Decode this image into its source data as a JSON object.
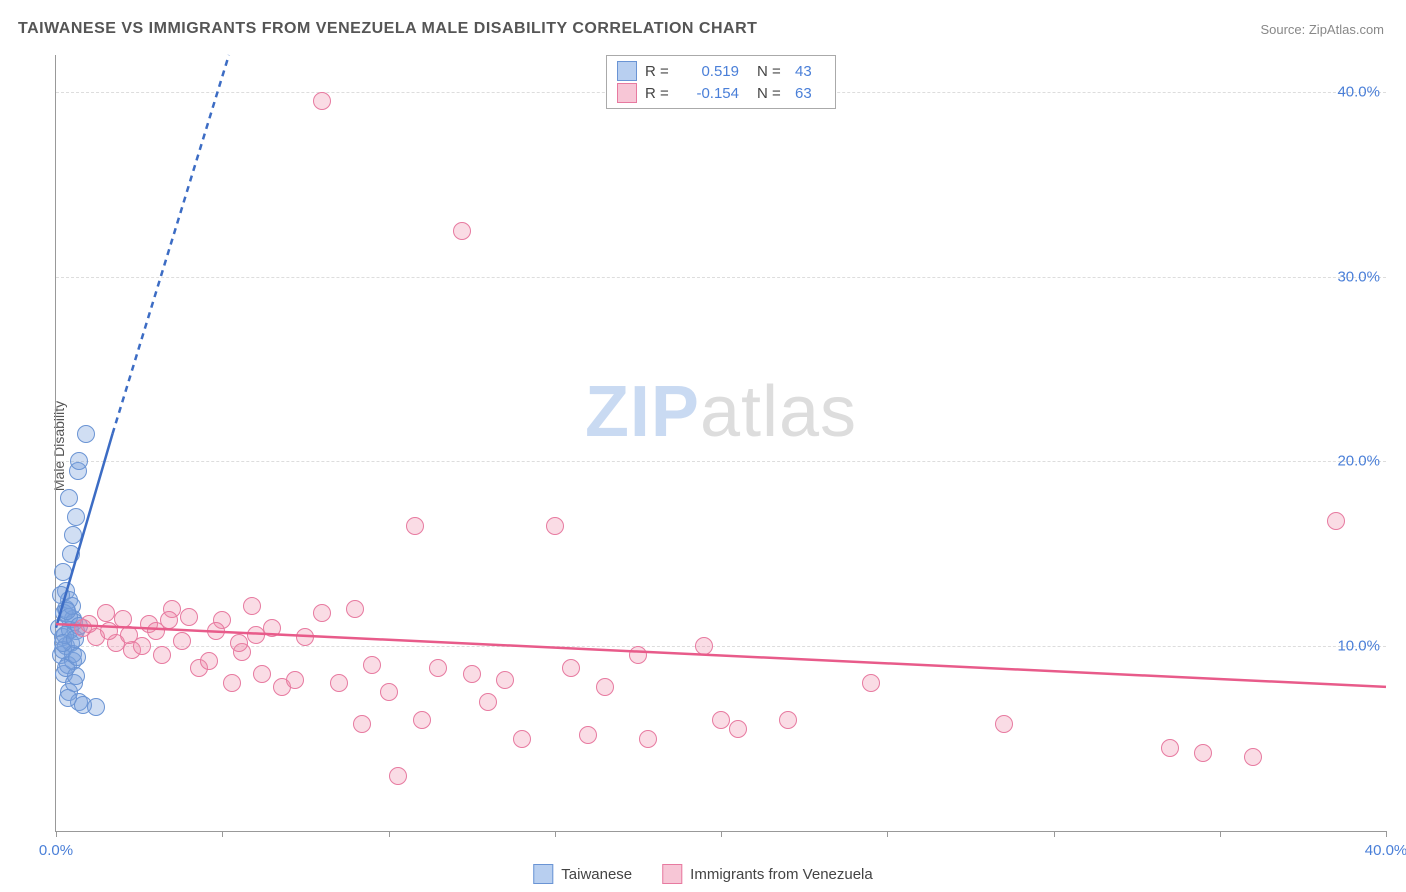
{
  "title": "TAIWANESE VS IMMIGRANTS FROM VENEZUELA MALE DISABILITY CORRELATION CHART",
  "source": "Source: ZipAtlas.com",
  "ylabel": "Male Disability",
  "watermark": {
    "part1": "ZIP",
    "part2": "atlas"
  },
  "chart": {
    "type": "scatter",
    "xlim": [
      0,
      40
    ],
    "ylim": [
      0,
      42
    ],
    "x_ticks": [
      0,
      5,
      10,
      15,
      20,
      25,
      30,
      35,
      40
    ],
    "x_tick_labels": {
      "0": "0.0%",
      "40": "40.0%"
    },
    "y_gridlines": [
      10,
      20,
      30,
      40
    ],
    "y_tick_labels": {
      "10": "10.0%",
      "20": "20.0%",
      "30": "30.0%",
      "40": "40.0%"
    },
    "background_color": "#ffffff",
    "grid_color": "#dddddd",
    "axis_color": "#999999",
    "tick_label_color": "#4a7fd8",
    "point_radius": 9
  },
  "series": [
    {
      "id": "taiwanese",
      "label": "Taiwanese",
      "color_fill": "rgba(120,160,220,0.35)",
      "color_stroke": "#6a94d4",
      "swatch_fill": "#b8cff0",
      "swatch_border": "#6a94d4",
      "R": "0.519",
      "N": "43",
      "trend": {
        "solid": {
          "x1": 0.0,
          "y1": 11.0,
          "x2": 1.7,
          "y2": 21.5
        },
        "dashed": {
          "x1": 1.7,
          "y1": 21.5,
          "x2": 5.2,
          "y2": 42.0
        },
        "stroke": "#3c6cc4",
        "width": 2.5
      },
      "points": [
        [
          0.1,
          11.0
        ],
        [
          0.2,
          10.5
        ],
        [
          0.3,
          12.0
        ],
        [
          0.15,
          9.5
        ],
        [
          0.25,
          8.5
        ],
        [
          0.4,
          7.5
        ],
        [
          0.3,
          13.0
        ],
        [
          0.5,
          11.5
        ],
        [
          0.6,
          10.8
        ],
        [
          0.2,
          14.0
        ],
        [
          0.4,
          12.5
        ],
        [
          0.35,
          9.0
        ],
        [
          0.55,
          8.0
        ],
        [
          0.7,
          7.0
        ],
        [
          0.8,
          6.8
        ],
        [
          1.2,
          6.7
        ],
        [
          0.45,
          15.0
        ],
        [
          0.5,
          16.0
        ],
        [
          0.6,
          17.0
        ],
        [
          0.4,
          18.0
        ],
        [
          0.65,
          19.5
        ],
        [
          0.7,
          20.0
        ],
        [
          0.9,
          21.5
        ],
        [
          0.3,
          10.0
        ],
        [
          0.25,
          11.8
        ],
        [
          0.15,
          12.8
        ],
        [
          0.5,
          9.2
        ],
        [
          0.6,
          8.4
        ],
        [
          0.35,
          7.2
        ],
        [
          0.45,
          10.2
        ],
        [
          0.55,
          11.3
        ],
        [
          0.2,
          9.8
        ],
        [
          0.38,
          11.6
        ],
        [
          0.42,
          10.9
        ],
        [
          0.3,
          8.8
        ],
        [
          0.48,
          12.2
        ],
        [
          0.52,
          9.6
        ],
        [
          0.28,
          10.6
        ],
        [
          0.33,
          11.9
        ],
        [
          0.22,
          10.2
        ],
        [
          0.58,
          10.4
        ],
        [
          0.62,
          9.4
        ],
        [
          0.68,
          11.1
        ]
      ]
    },
    {
      "id": "venezuela",
      "label": "Immigrants from Venezuela",
      "color_fill": "rgba(240,140,170,0.3)",
      "color_stroke": "#e77aa0",
      "swatch_fill": "#f7c6d6",
      "swatch_border": "#e77aa0",
      "R": "-0.154",
      "N": "63",
      "trend": {
        "solid": {
          "x1": 0.0,
          "y1": 11.2,
          "x2": 40.0,
          "y2": 7.8
        },
        "stroke": "#e85b8a",
        "width": 2.5
      },
      "points": [
        [
          0.8,
          11.0
        ],
        [
          1.2,
          10.5
        ],
        [
          1.5,
          11.8
        ],
        [
          1.8,
          10.2
        ],
        [
          2.0,
          11.5
        ],
        [
          2.3,
          9.8
        ],
        [
          2.6,
          10.0
        ],
        [
          2.8,
          11.2
        ],
        [
          3.0,
          10.8
        ],
        [
          3.2,
          9.5
        ],
        [
          3.5,
          12.0
        ],
        [
          3.8,
          10.3
        ],
        [
          4.0,
          11.6
        ],
        [
          4.3,
          8.8
        ],
        [
          4.6,
          9.2
        ],
        [
          5.0,
          11.4
        ],
        [
          5.3,
          8.0
        ],
        [
          5.6,
          9.7
        ],
        [
          5.9,
          12.2
        ],
        [
          6.2,
          8.5
        ],
        [
          6.5,
          11.0
        ],
        [
          6.8,
          7.8
        ],
        [
          7.2,
          8.2
        ],
        [
          7.5,
          10.5
        ],
        [
          8.0,
          11.8
        ],
        [
          8.0,
          39.5
        ],
        [
          8.5,
          8.0
        ],
        [
          9.0,
          12.0
        ],
        [
          9.2,
          5.8
        ],
        [
          9.5,
          9.0
        ],
        [
          10.0,
          7.5
        ],
        [
          10.3,
          3.0
        ],
        [
          10.8,
          16.5
        ],
        [
          11.0,
          6.0
        ],
        [
          11.5,
          8.8
        ],
        [
          12.2,
          32.5
        ],
        [
          12.5,
          8.5
        ],
        [
          13.0,
          7.0
        ],
        [
          13.5,
          8.2
        ],
        [
          14.0,
          5.0
        ],
        [
          15.0,
          16.5
        ],
        [
          15.5,
          8.8
        ],
        [
          16.0,
          5.2
        ],
        [
          16.5,
          7.8
        ],
        [
          17.5,
          9.5
        ],
        [
          17.8,
          5.0
        ],
        [
          19.5,
          10.0
        ],
        [
          20.0,
          6.0
        ],
        [
          20.5,
          5.5
        ],
        [
          22.0,
          6.0
        ],
        [
          24.5,
          8.0
        ],
        [
          28.5,
          5.8
        ],
        [
          33.5,
          4.5
        ],
        [
          34.5,
          4.2
        ],
        [
          36.0,
          4.0
        ],
        [
          38.5,
          16.8
        ],
        [
          1.0,
          11.2
        ],
        [
          1.6,
          10.8
        ],
        [
          2.2,
          10.6
        ],
        [
          3.4,
          11.4
        ],
        [
          4.8,
          10.8
        ],
        [
          5.5,
          10.2
        ],
        [
          6.0,
          10.6
        ]
      ]
    }
  ],
  "legend_top_labels": {
    "R": "R =",
    "N": "N ="
  },
  "legend_bottom": [
    {
      "ref": "taiwanese"
    },
    {
      "ref": "venezuela"
    }
  ]
}
